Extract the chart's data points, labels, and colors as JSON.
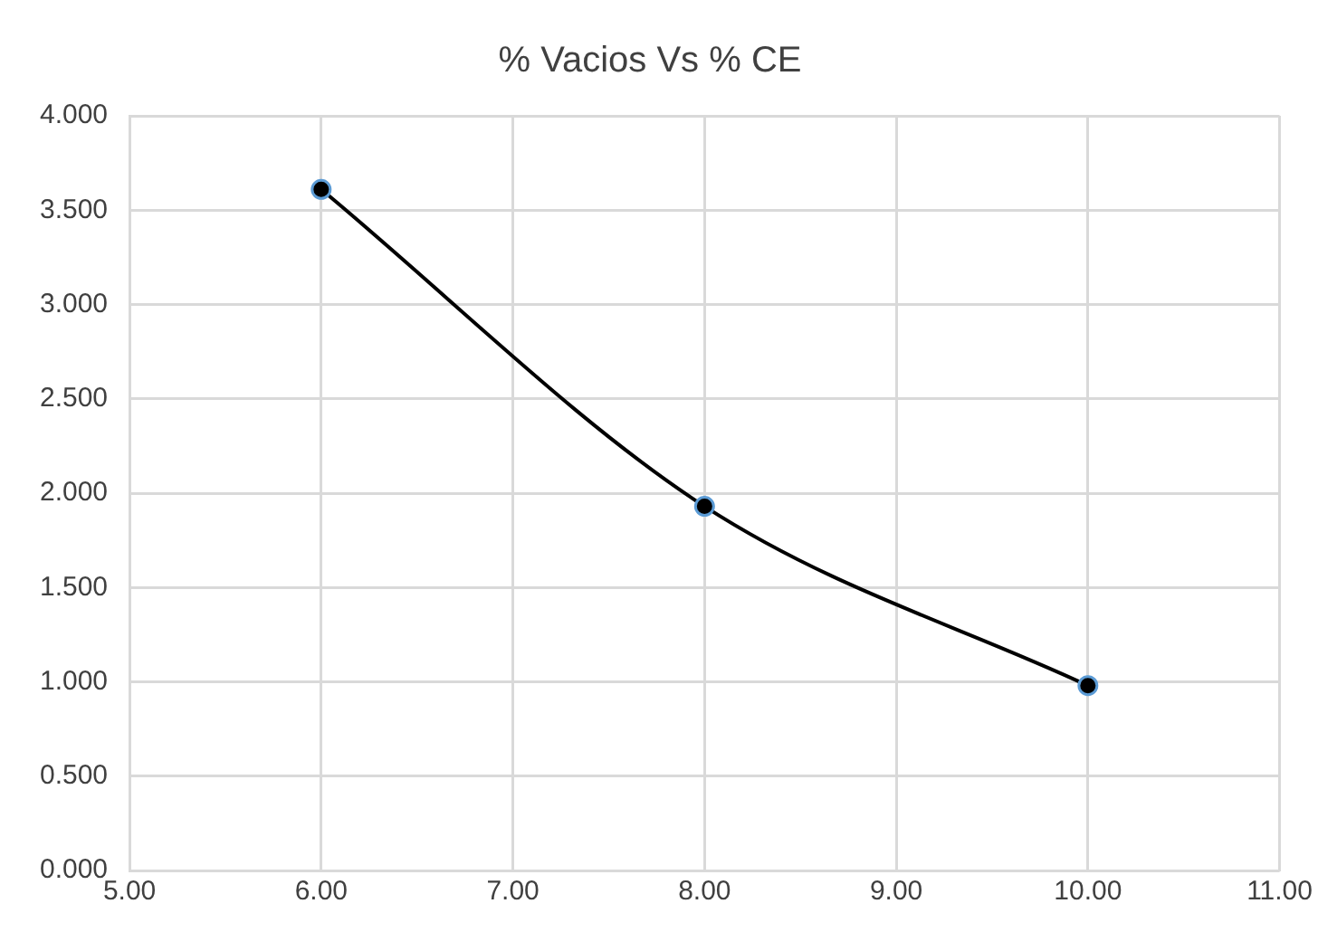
{
  "chart_data": {
    "type": "line",
    "title": "% Vacios Vs % CE",
    "x": [
      6,
      8,
      10
    ],
    "series": [
      {
        "color": "#000000",
        "values": [
          3.61,
          1.93,
          0.98
        ]
      }
    ],
    "xlim": [
      5,
      11
    ],
    "xticks": [
      {
        "value": 5,
        "label": "5.00"
      },
      {
        "value": 6,
        "label": "6.00"
      },
      {
        "value": 7,
        "label": "7.00"
      },
      {
        "value": 8,
        "label": "8.00"
      },
      {
        "value": 9,
        "label": "9.00"
      },
      {
        "value": 10,
        "label": "10.00"
      },
      {
        "value": 11,
        "label": "11.00"
      }
    ],
    "ylim": [
      0,
      4
    ],
    "yticks": [
      {
        "value": 0,
        "label": "0.000"
      },
      {
        "value": 0.5,
        "label": "0.500"
      },
      {
        "value": 1,
        "label": "1.000"
      },
      {
        "value": 1.5,
        "label": "1.500"
      },
      {
        "value": 2,
        "label": "2.000"
      },
      {
        "value": 2.5,
        "label": "2.500"
      },
      {
        "value": 3,
        "label": "3.000"
      },
      {
        "value": 3.5,
        "label": "3.500"
      },
      {
        "value": 4,
        "label": "4.000"
      }
    ],
    "grid": true,
    "legend": false,
    "marker": "circle",
    "line_style": "solid"
  }
}
